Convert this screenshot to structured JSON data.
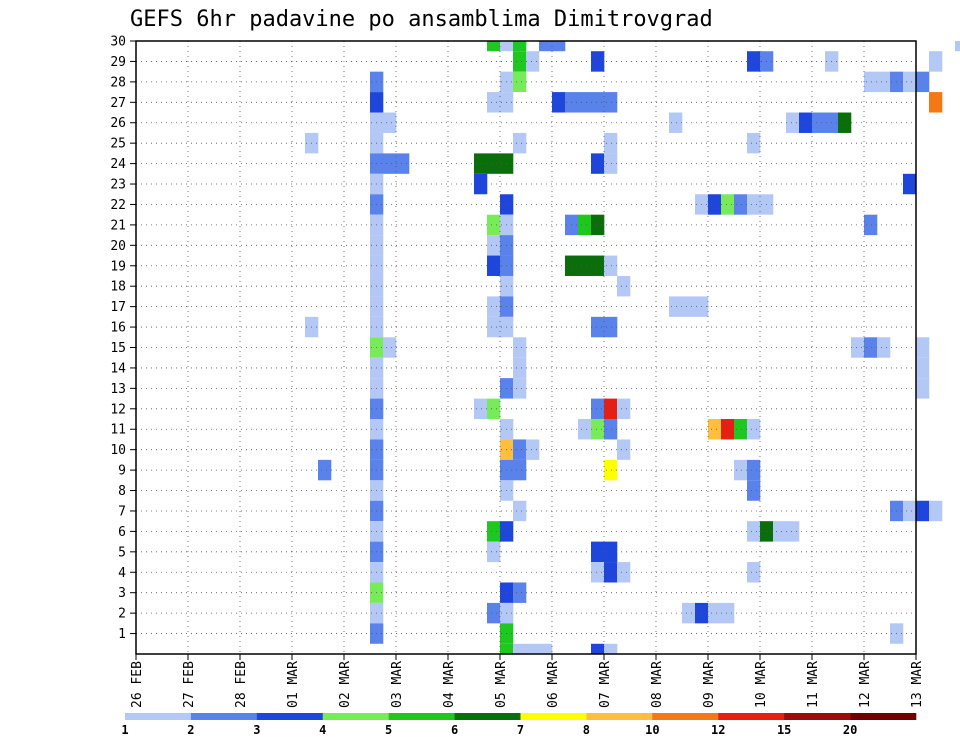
{
  "chart_data": {
    "type": "heatmap",
    "title": "GEFS 6hr padavine po ansamblima Dimitrovgrad",
    "xlabel": "",
    "ylabel": "",
    "x_tick_labels": [
      "26 FEB",
      "27 FEB",
      "28 FEB",
      "01 MAR",
      "02 MAR",
      "03 MAR",
      "04 MAR",
      "05 MAR",
      "06 MAR",
      "07 MAR",
      "08 MAR",
      "09 MAR",
      "10 MAR",
      "11 MAR",
      "12 MAR",
      "13 MAR"
    ],
    "x_range_days": [
      0,
      15
    ],
    "y_tick_labels": [
      "1",
      "2",
      "3",
      "4",
      "5",
      "6",
      "7",
      "8",
      "9",
      "10",
      "11",
      "12",
      "13",
      "14",
      "15",
      "16",
      "17",
      "18",
      "19",
      "20",
      "21",
      "22",
      "23",
      "24",
      "25",
      "26",
      "27",
      "28",
      "29",
      "30"
    ],
    "y_range": [
      0,
      30
    ],
    "grid": true,
    "legend": {
      "type": "colorbar",
      "placement": "bottom",
      "ticks": [
        "1",
        "2",
        "3",
        "4",
        "5",
        "6",
        "7",
        "8",
        "10",
        "12",
        "15",
        "20"
      ],
      "colors": [
        "#b4c8f5",
        "#5a82eb",
        "#1e46dc",
        "#78eb5a",
        "#1ec81e",
        "#0a6e0a",
        "#ffff00",
        "#ffbe3c",
        "#f57814",
        "#e61e14",
        "#a00a0a",
        "#6e0000"
      ]
    },
    "cells": [
      {
        "y": 30,
        "t": [
          [
            27,
            "#1ec81e"
          ],
          [
            28,
            "#b4c8f5"
          ],
          [
            29,
            "#1ec81e"
          ],
          [
            31,
            "#5a82eb"
          ],
          [
            32,
            "#5a82eb"
          ],
          [
            63,
            "#b4c8f5"
          ],
          [
            66,
            "#ffbe3c"
          ],
          [
            67,
            "#1ec81e"
          ]
        ]
      },
      {
        "y": 29,
        "t": [
          [
            29,
            "#1ec81e"
          ],
          [
            30,
            "#b4c8f5"
          ],
          [
            35,
            "#1e46dc"
          ],
          [
            47,
            "#1e46dc"
          ],
          [
            48,
            "#5a82eb"
          ],
          [
            53,
            "#b4c8f5"
          ],
          [
            61,
            "#b4c8f5"
          ],
          [
            71,
            "#b4c8f5"
          ],
          [
            79,
            "#b4c8f5"
          ],
          [
            80,
            "#5a82eb"
          ],
          [
            86,
            "#5a82eb"
          ]
        ]
      },
      {
        "y": 28,
        "t": [
          [
            18,
            "#5a82eb"
          ],
          [
            28,
            "#b4c8f5"
          ],
          [
            29,
            "#78eb5a"
          ],
          [
            56,
            "#b4c8f5"
          ],
          [
            57,
            "#b4c8f5"
          ],
          [
            58,
            "#5a82eb"
          ],
          [
            59,
            "#b4c8f5"
          ],
          [
            60,
            "#5a82eb"
          ],
          [
            76,
            "#b4c8f5"
          ],
          [
            82,
            "#1ec81e"
          ],
          [
            83,
            "#78eb5a"
          ]
        ]
      },
      {
        "y": 27,
        "t": [
          [
            18,
            "#1e46dc"
          ],
          [
            27,
            "#b4c8f5"
          ],
          [
            28,
            "#b4c8f5"
          ],
          [
            32,
            "#1e46dc"
          ],
          [
            33,
            "#5a82eb"
          ],
          [
            34,
            "#5a82eb"
          ],
          [
            35,
            "#5a82eb"
          ],
          [
            36,
            "#5a82eb"
          ],
          [
            61,
            "#f57814"
          ],
          [
            64,
            "#b4c8f5"
          ],
          [
            89,
            "#ffff00"
          ],
          [
            90,
            "#f57814"
          ]
        ]
      },
      {
        "y": 26,
        "t": [
          [
            18,
            "#b4c8f5"
          ],
          [
            19,
            "#b4c8f5"
          ],
          [
            41,
            "#b4c8f5"
          ],
          [
            50,
            "#b4c8f5"
          ],
          [
            51,
            "#1e46dc"
          ],
          [
            52,
            "#5a82eb"
          ],
          [
            53,
            "#5a82eb"
          ],
          [
            54,
            "#0a6e0a"
          ],
          [
            77,
            "#ffff00"
          ],
          [
            78,
            "#ffbe3c"
          ],
          [
            79,
            "#5a82eb"
          ],
          [
            80,
            "#b4c8f5"
          ],
          [
            86,
            "#1ec81e"
          ],
          [
            87,
            "#b4c8f5"
          ]
        ]
      },
      {
        "y": 25,
        "t": [
          [
            13,
            "#b4c8f5"
          ],
          [
            18,
            "#b4c8f5"
          ],
          [
            29,
            "#b4c8f5"
          ],
          [
            36,
            "#b4c8f5"
          ],
          [
            47,
            "#b4c8f5"
          ],
          [
            78,
            "#0a6e0a"
          ],
          [
            79,
            "#1ec81e"
          ],
          [
            80,
            "#1e46dc"
          ],
          [
            89,
            "#b4c8f5"
          ],
          [
            90,
            "#5a82eb"
          ]
        ]
      },
      {
        "y": 24,
        "t": [
          [
            18,
            "#5a82eb"
          ],
          [
            19,
            "#5a82eb"
          ],
          [
            20,
            "#5a82eb"
          ],
          [
            26,
            "#0a6e0a"
          ],
          [
            27,
            "#0a6e0a"
          ],
          [
            28,
            "#0a6e0a"
          ],
          [
            35,
            "#1e46dc"
          ],
          [
            36,
            "#b4c8f5"
          ],
          [
            84,
            "#0a6e0a"
          ]
        ]
      },
      {
        "y": 23,
        "t": [
          [
            18,
            "#b4c8f5"
          ],
          [
            26,
            "#1e46dc"
          ],
          [
            59,
            "#1e46dc"
          ],
          [
            79,
            "#b4c8f5"
          ],
          [
            81,
            "#b4c8f5"
          ],
          [
            82,
            "#5a82eb"
          ],
          [
            87,
            "#b4c8f5"
          ],
          [
            88,
            "#ffff00"
          ],
          [
            89,
            "#ffff00"
          ],
          [
            90,
            "#5a82eb"
          ],
          [
            91,
            "#b4c8f5"
          ]
        ]
      },
      {
        "y": 22,
        "t": [
          [
            18,
            "#5a82eb"
          ],
          [
            28,
            "#1e46dc"
          ],
          [
            43,
            "#b4c8f5"
          ],
          [
            44,
            "#1e46dc"
          ],
          [
            45,
            "#78eb5a"
          ],
          [
            46,
            "#5a82eb"
          ],
          [
            47,
            "#b4c8f5"
          ],
          [
            48,
            "#b4c8f5"
          ],
          [
            81,
            "#b4c8f5"
          ],
          [
            82,
            "#b4c8f5"
          ]
        ]
      },
      {
        "y": 21,
        "t": [
          [
            18,
            "#b4c8f5"
          ],
          [
            27,
            "#78eb5a"
          ],
          [
            28,
            "#b4c8f5"
          ],
          [
            33,
            "#5a82eb"
          ],
          [
            34,
            "#1ec81e"
          ],
          [
            35,
            "#0a6e0a"
          ],
          [
            56,
            "#5a82eb"
          ],
          [
            83,
            "#b4c8f5"
          ]
        ]
      },
      {
        "y": 20,
        "t": [
          [
            18,
            "#b4c8f5"
          ],
          [
            27,
            "#b4c8f5"
          ],
          [
            28,
            "#5a82eb"
          ],
          [
            87,
            "#b4c8f5"
          ],
          [
            90,
            "#5a82eb"
          ]
        ]
      },
      {
        "y": 19,
        "t": [
          [
            18,
            "#b4c8f5"
          ],
          [
            27,
            "#1e46dc"
          ],
          [
            28,
            "#5a82eb"
          ],
          [
            33,
            "#0a6e0a"
          ],
          [
            34,
            "#0a6e0a"
          ],
          [
            35,
            "#0a6e0a"
          ],
          [
            36,
            "#b4c8f5"
          ],
          [
            74,
            "#b4c8f5"
          ],
          [
            76,
            "#b4c8f5"
          ]
        ]
      },
      {
        "y": 18,
        "t": [
          [
            18,
            "#b4c8f5"
          ],
          [
            28,
            "#b4c8f5"
          ],
          [
            37,
            "#b4c8f5"
          ],
          [
            86,
            "#b4c8f5"
          ],
          [
            87,
            "#b4c8f5"
          ],
          [
            89,
            "#1e46dc"
          ]
        ]
      },
      {
        "y": 17,
        "t": [
          [
            18,
            "#b4c8f5"
          ],
          [
            27,
            "#b4c8f5"
          ],
          [
            28,
            "#5a82eb"
          ],
          [
            41,
            "#b4c8f5"
          ],
          [
            42,
            "#b4c8f5"
          ],
          [
            43,
            "#b4c8f5"
          ],
          [
            80,
            "#78eb5a"
          ],
          [
            81,
            "#5a82eb"
          ]
        ]
      },
      {
        "y": 16,
        "t": [
          [
            13,
            "#b4c8f5"
          ],
          [
            18,
            "#b4c8f5"
          ],
          [
            27,
            "#b4c8f5"
          ],
          [
            28,
            "#b4c8f5"
          ],
          [
            35,
            "#5a82eb"
          ],
          [
            36,
            "#5a82eb"
          ],
          [
            79,
            "#b4c8f5"
          ]
        ]
      },
      {
        "y": 15,
        "t": [
          [
            18,
            "#78eb5a"
          ],
          [
            19,
            "#b4c8f5"
          ],
          [
            29,
            "#b4c8f5"
          ],
          [
            55,
            "#b4c8f5"
          ],
          [
            56,
            "#5a82eb"
          ],
          [
            57,
            "#b4c8f5"
          ],
          [
            60,
            "#b4c8f5"
          ],
          [
            81,
            "#0a6e0a"
          ],
          [
            82,
            "#5a82eb"
          ],
          [
            88,
            "#5a82eb"
          ],
          [
            90,
            "#b4c8f5"
          ]
        ]
      },
      {
        "y": 14,
        "t": [
          [
            18,
            "#b4c8f5"
          ],
          [
            29,
            "#b4c8f5"
          ],
          [
            60,
            "#b4c8f5"
          ]
        ]
      },
      {
        "y": 13,
        "t": [
          [
            18,
            "#b4c8f5"
          ],
          [
            28,
            "#5a82eb"
          ],
          [
            29,
            "#b4c8f5"
          ],
          [
            60,
            "#b4c8f5"
          ]
        ]
      },
      {
        "y": 12,
        "t": [
          [
            18,
            "#5a82eb"
          ],
          [
            26,
            "#b4c8f5"
          ],
          [
            27,
            "#78eb5a"
          ],
          [
            35,
            "#5a82eb"
          ],
          [
            36,
            "#e61e14"
          ],
          [
            37,
            "#b4c8f5"
          ],
          [
            66,
            "#1e46dc"
          ],
          [
            80,
            "#1ec81e"
          ],
          [
            83,
            "#b4c8f5"
          ],
          [
            84,
            "#1ec81e"
          ],
          [
            85,
            "#1e46dc"
          ]
        ]
      },
      {
        "y": 11,
        "t": [
          [
            18,
            "#b4c8f5"
          ],
          [
            28,
            "#b4c8f5"
          ],
          [
            34,
            "#b4c8f5"
          ],
          [
            35,
            "#78eb5a"
          ],
          [
            36,
            "#5a82eb"
          ],
          [
            44,
            "#ffbe3c"
          ],
          [
            45,
            "#e61e14"
          ],
          [
            46,
            "#1ec81e"
          ],
          [
            47,
            "#b4c8f5"
          ],
          [
            80,
            "#1e46dc"
          ],
          [
            81,
            "#78eb5a"
          ],
          [
            82,
            "#b4c8f5"
          ]
        ]
      },
      {
        "y": 10,
        "t": [
          [
            18,
            "#5a82eb"
          ],
          [
            28,
            "#ffbe3c"
          ],
          [
            29,
            "#5a82eb"
          ],
          [
            30,
            "#b4c8f5"
          ],
          [
            37,
            "#b4c8f5"
          ],
          [
            76,
            "#b4c8f5"
          ]
        ]
      },
      {
        "y": 9,
        "t": [
          [
            14,
            "#5a82eb"
          ],
          [
            18,
            "#5a82eb"
          ],
          [
            28,
            "#5a82eb"
          ],
          [
            29,
            "#5a82eb"
          ],
          [
            36,
            "#ffff00"
          ],
          [
            46,
            "#b4c8f5"
          ],
          [
            47,
            "#5a82eb"
          ],
          [
            74,
            "#b4c8f5"
          ],
          [
            75,
            "#b4c8f5"
          ],
          [
            76,
            "#b4c8f5"
          ],
          [
            89,
            "#1e46dc"
          ],
          [
            90,
            "#1e46dc"
          ]
        ]
      },
      {
        "y": 8,
        "t": [
          [
            18,
            "#b4c8f5"
          ],
          [
            28,
            "#b4c8f5"
          ],
          [
            47,
            "#5a82eb"
          ],
          [
            74,
            "#b4c8f5"
          ],
          [
            75,
            "#1e46dc"
          ],
          [
            89,
            "#b4c8f5"
          ]
        ]
      },
      {
        "y": 7,
        "t": [
          [
            18,
            "#5a82eb"
          ],
          [
            29,
            "#b4c8f5"
          ],
          [
            58,
            "#5a82eb"
          ],
          [
            59,
            "#b4c8f5"
          ],
          [
            60,
            "#1e46dc"
          ],
          [
            61,
            "#b4c8f5"
          ],
          [
            91,
            "#5a82eb"
          ]
        ]
      },
      {
        "y": 6,
        "t": [
          [
            18,
            "#b4c8f5"
          ],
          [
            27,
            "#1ec81e"
          ],
          [
            28,
            "#1e46dc"
          ],
          [
            47,
            "#b4c8f5"
          ],
          [
            48,
            "#0a6e0a"
          ],
          [
            49,
            "#b4c8f5"
          ],
          [
            50,
            "#b4c8f5"
          ]
        ]
      },
      {
        "y": 5,
        "t": [
          [
            18,
            "#5a82eb"
          ],
          [
            27,
            "#b4c8f5"
          ],
          [
            35,
            "#1e46dc"
          ],
          [
            36,
            "#1e46dc"
          ],
          [
            82,
            "#b4c8f5"
          ],
          [
            88,
            "#5a82eb"
          ],
          [
            92,
            "#5a82eb"
          ],
          [
            93,
            "#b4c8f5"
          ]
        ]
      },
      {
        "y": 4,
        "t": [
          [
            18,
            "#b4c8f5"
          ],
          [
            35,
            "#b4c8f5"
          ],
          [
            36,
            "#1e46dc"
          ],
          [
            37,
            "#b4c8f5"
          ],
          [
            47,
            "#b4c8f5"
          ],
          [
            67,
            "#b4c8f5"
          ],
          [
            84,
            "#b4c8f5"
          ],
          [
            85,
            "#b4c8f5"
          ],
          [
            86,
            "#1e46dc"
          ],
          [
            87,
            "#1e46dc"
          ],
          [
            88,
            "#5a82eb"
          ]
        ]
      },
      {
        "y": 3,
        "t": [
          [
            18,
            "#78eb5a"
          ],
          [
            28,
            "#1e46dc"
          ],
          [
            29,
            "#5a82eb"
          ],
          [
            84,
            "#5a82eb"
          ]
        ]
      },
      {
        "y": 2,
        "t": [
          [
            18,
            "#b4c8f5"
          ],
          [
            27,
            "#5a82eb"
          ],
          [
            28,
            "#b4c8f5"
          ],
          [
            42,
            "#b4c8f5"
          ],
          [
            43,
            "#1e46dc"
          ],
          [
            44,
            "#b4c8f5"
          ],
          [
            45,
            "#b4c8f5"
          ],
          [
            76,
            "#b4c8f5"
          ]
        ]
      },
      {
        "y": 1,
        "t": [
          [
            18,
            "#5a82eb"
          ],
          [
            28,
            "#1ec81e"
          ],
          [
            58,
            "#b4c8f5"
          ],
          [
            79,
            "#b4c8f5"
          ],
          [
            80,
            "#1e46dc"
          ],
          [
            81,
            "#b4c8f5"
          ],
          [
            82,
            "#b4c8f5"
          ],
          [
            83,
            "#b4c8f5"
          ],
          [
            84,
            "#b4c8f5"
          ]
        ]
      },
      {
        "y": 0,
        "t": [
          [
            28,
            "#1ec81e"
          ],
          [
            29,
            "#b4c8f5"
          ],
          [
            30,
            "#b4c8f5"
          ],
          [
            31,
            "#b4c8f5"
          ],
          [
            35,
            "#1e46dc"
          ],
          [
            36,
            "#b4c8f5"
          ],
          [
            76,
            "#b4c8f5"
          ],
          [
            77,
            "#b4c8f5"
          ]
        ]
      }
    ]
  }
}
